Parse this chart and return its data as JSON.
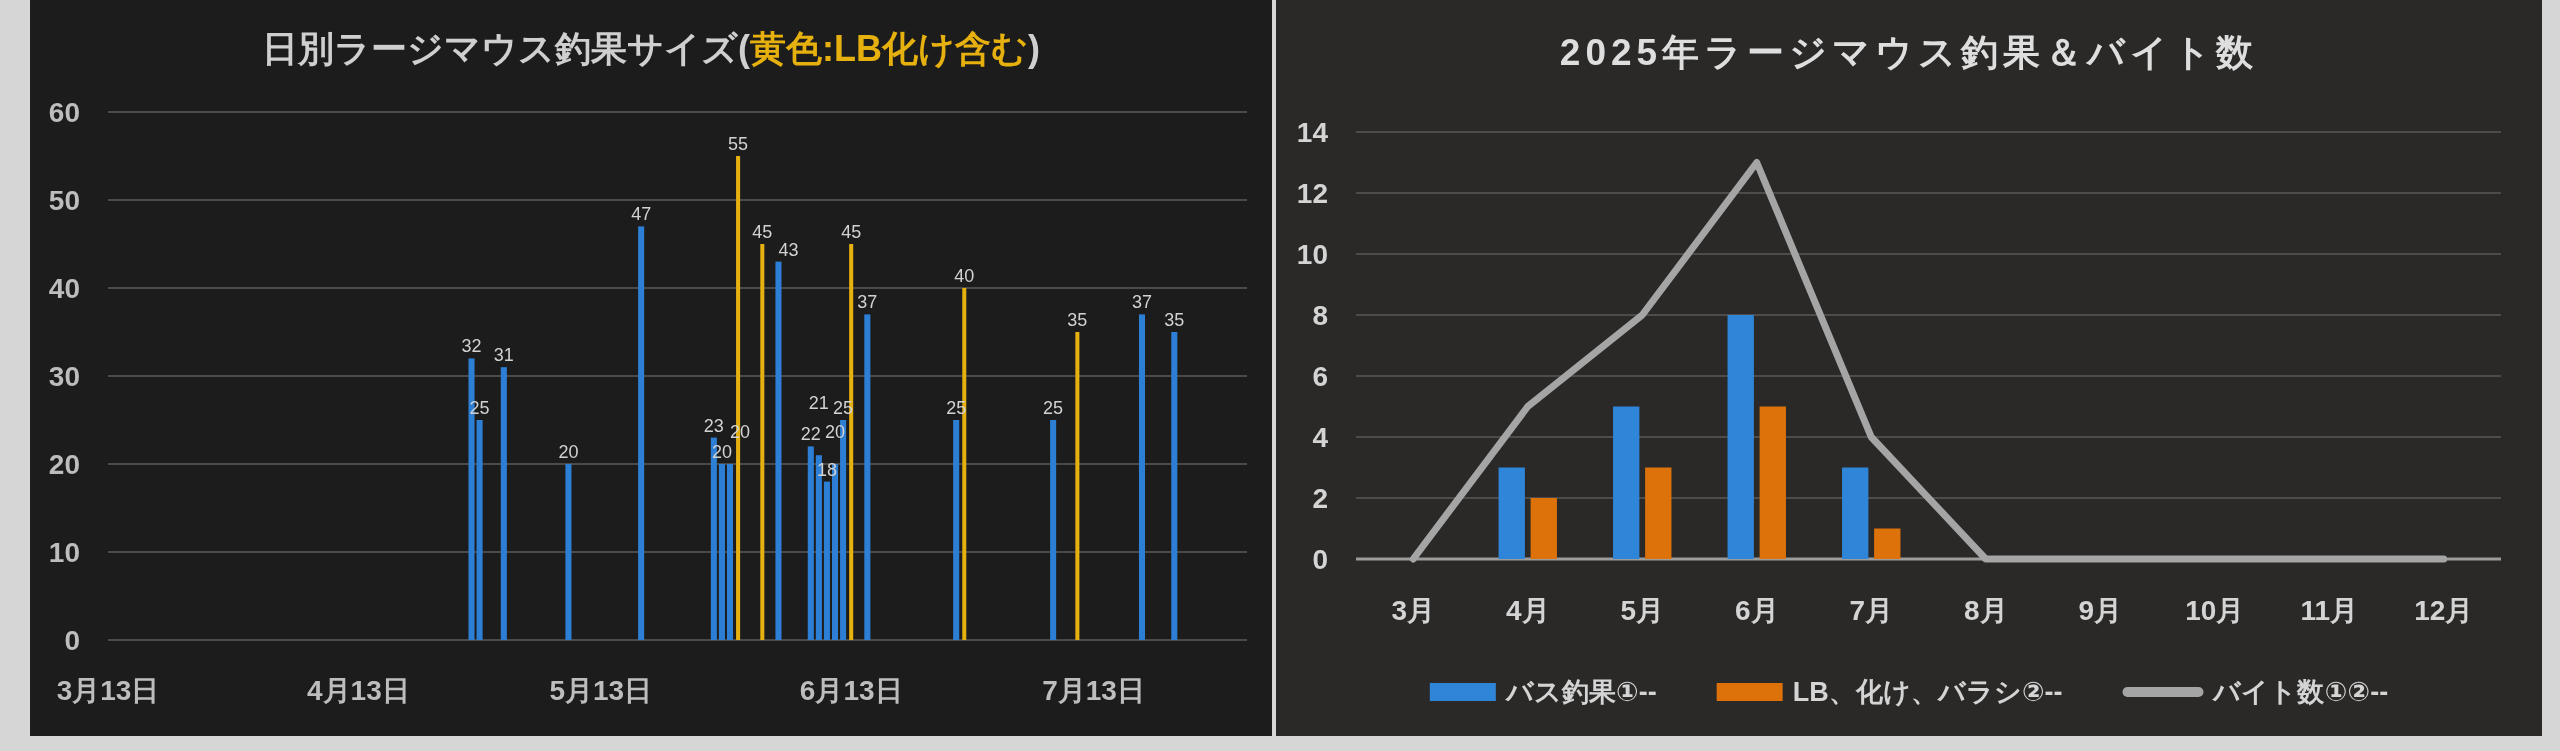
{
  "chart_data": [
    {
      "type": "bar",
      "title": "日別ラージマウス釣果サイズ(黄色:LB化け含む)",
      "xlim": [
        "--03-13",
        "--08-01"
      ],
      "xticks": [
        {
          "value": "--03-13",
          "label": "3月13日"
        },
        {
          "value": "--04-13",
          "label": "4月13日"
        },
        {
          "value": "--05-13",
          "label": "5月13日"
        },
        {
          "value": "--06-13",
          "label": "6月13日"
        },
        {
          "value": "--07-13",
          "label": "7月13日"
        }
      ],
      "ylim": [
        0,
        60
      ],
      "yticks": [
        0,
        10,
        20,
        30,
        40,
        50,
        60
      ],
      "grid": "y",
      "data_labels": true,
      "series": [
        {
          "color": "#2d7fd6",
          "x": [
            "--04-27",
            "--04-28",
            "--05-01",
            "--05-09",
            "--05-18",
            "--05-27",
            "--05-28",
            "--05-29",
            "--06-04",
            "--06-08",
            "--06-09",
            "--06-10",
            "--06-11",
            "--06-12",
            "--06-15",
            "--06-26",
            "--07-08",
            "--07-19",
            "--07-23"
          ],
          "values": [
            32,
            25,
            31,
            20,
            47,
            23,
            20,
            20,
            43,
            22,
            21,
            18,
            20,
            25,
            37,
            25,
            25,
            37,
            35
          ]
        },
        {
          "color": "#e6b00e",
          "x": [
            "--05-30",
            "--06-02",
            "--06-13",
            "--06-27",
            "--07-11"
          ],
          "values": [
            55,
            45,
            45,
            40,
            35
          ]
        }
      ]
    },
    {
      "type": "bar",
      "title": "2025年ラージマウス釣果＆バイト数",
      "categories": [
        "3月",
        "4月",
        "5月",
        "6月",
        "7月",
        "8月",
        "9月",
        "10月",
        "11月",
        "12月"
      ],
      "ylim": [
        0,
        14
      ],
      "yticks": [
        0,
        2,
        4,
        6,
        8,
        10,
        12,
        14
      ],
      "grid": "y",
      "legend": "bottom",
      "series": [
        {
          "name": "バス釣果①--",
          "color": "#2f86d8",
          "values": [
            null,
            3,
            5,
            8,
            3,
            null,
            null,
            null,
            null,
            null
          ]
        },
        {
          "name": "LB、化け、バラシ②--",
          "color": "#dd720b",
          "values": [
            null,
            2,
            3,
            5,
            1,
            null,
            null,
            null,
            null,
            null
          ]
        },
        {
          "name": "バイト数①②--",
          "type": "line",
          "color": "#a5a5a5",
          "values": [
            0,
            5,
            8,
            13,
            4,
            0,
            0,
            0,
            0,
            0
          ]
        }
      ]
    }
  ]
}
